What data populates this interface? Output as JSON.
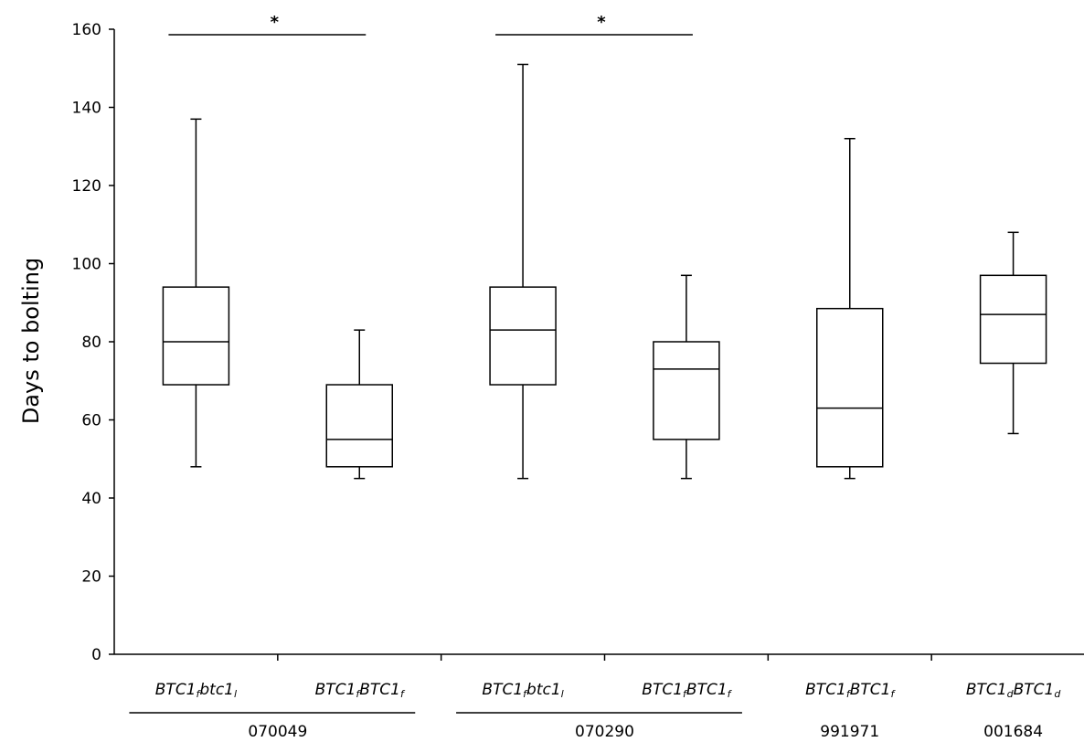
{
  "chart_data": {
    "type": "box",
    "ylabel": "Days to bolting",
    "ylim": [
      0,
      160
    ],
    "yticks": [
      0,
      20,
      40,
      60,
      80,
      100,
      120,
      140,
      160
    ],
    "categories": [
      {
        "base": "BTC1",
        "sub1": "f",
        "base2": "btc1",
        "sub2": "l"
      },
      {
        "base": "BTC1",
        "sub1": "f",
        "base2": "BTC1",
        "sub2": "f"
      },
      {
        "base": "BTC1",
        "sub1": "f",
        "base2": "btc1",
        "sub2": "l"
      },
      {
        "base": "BTC1",
        "sub1": "f",
        "base2": "BTC1",
        "sub2": "f"
      },
      {
        "base": "BTC1",
        "sub1": "f",
        "base2": "BTC1",
        "sub2": "f"
      },
      {
        "base": "BTC1",
        "sub1": "d",
        "base2": "BTC1",
        "sub2": "d"
      }
    ],
    "boxes": [
      {
        "min": 48,
        "q1": 69,
        "median": 80,
        "q3": 94,
        "max": 137
      },
      {
        "min": 45,
        "q1": 48,
        "median": 55,
        "q3": 69,
        "max": 83
      },
      {
        "min": 45,
        "q1": 69,
        "median": 83,
        "q3": 94,
        "max": 151
      },
      {
        "min": 45,
        "q1": 55,
        "median": 73,
        "q3": 80,
        "max": 97
      },
      {
        "min": 45,
        "q1": 48,
        "median": 63,
        "q3": 88.5,
        "max": 132
      },
      {
        "min": 56.5,
        "q1": 74.5,
        "median": 87,
        "q3": 97,
        "max": 108
      }
    ],
    "groups": [
      {
        "label": "070049",
        "from": 0,
        "to": 1
      },
      {
        "label": "070290",
        "from": 2,
        "to": 3
      },
      {
        "label": "991971",
        "from": 4,
        "to": 4
      },
      {
        "label": "001684",
        "from": 5,
        "to": 5
      }
    ],
    "significance": [
      {
        "from": 0,
        "to": 1,
        "label": "*"
      },
      {
        "from": 2,
        "to": 3,
        "label": "*"
      }
    ]
  }
}
